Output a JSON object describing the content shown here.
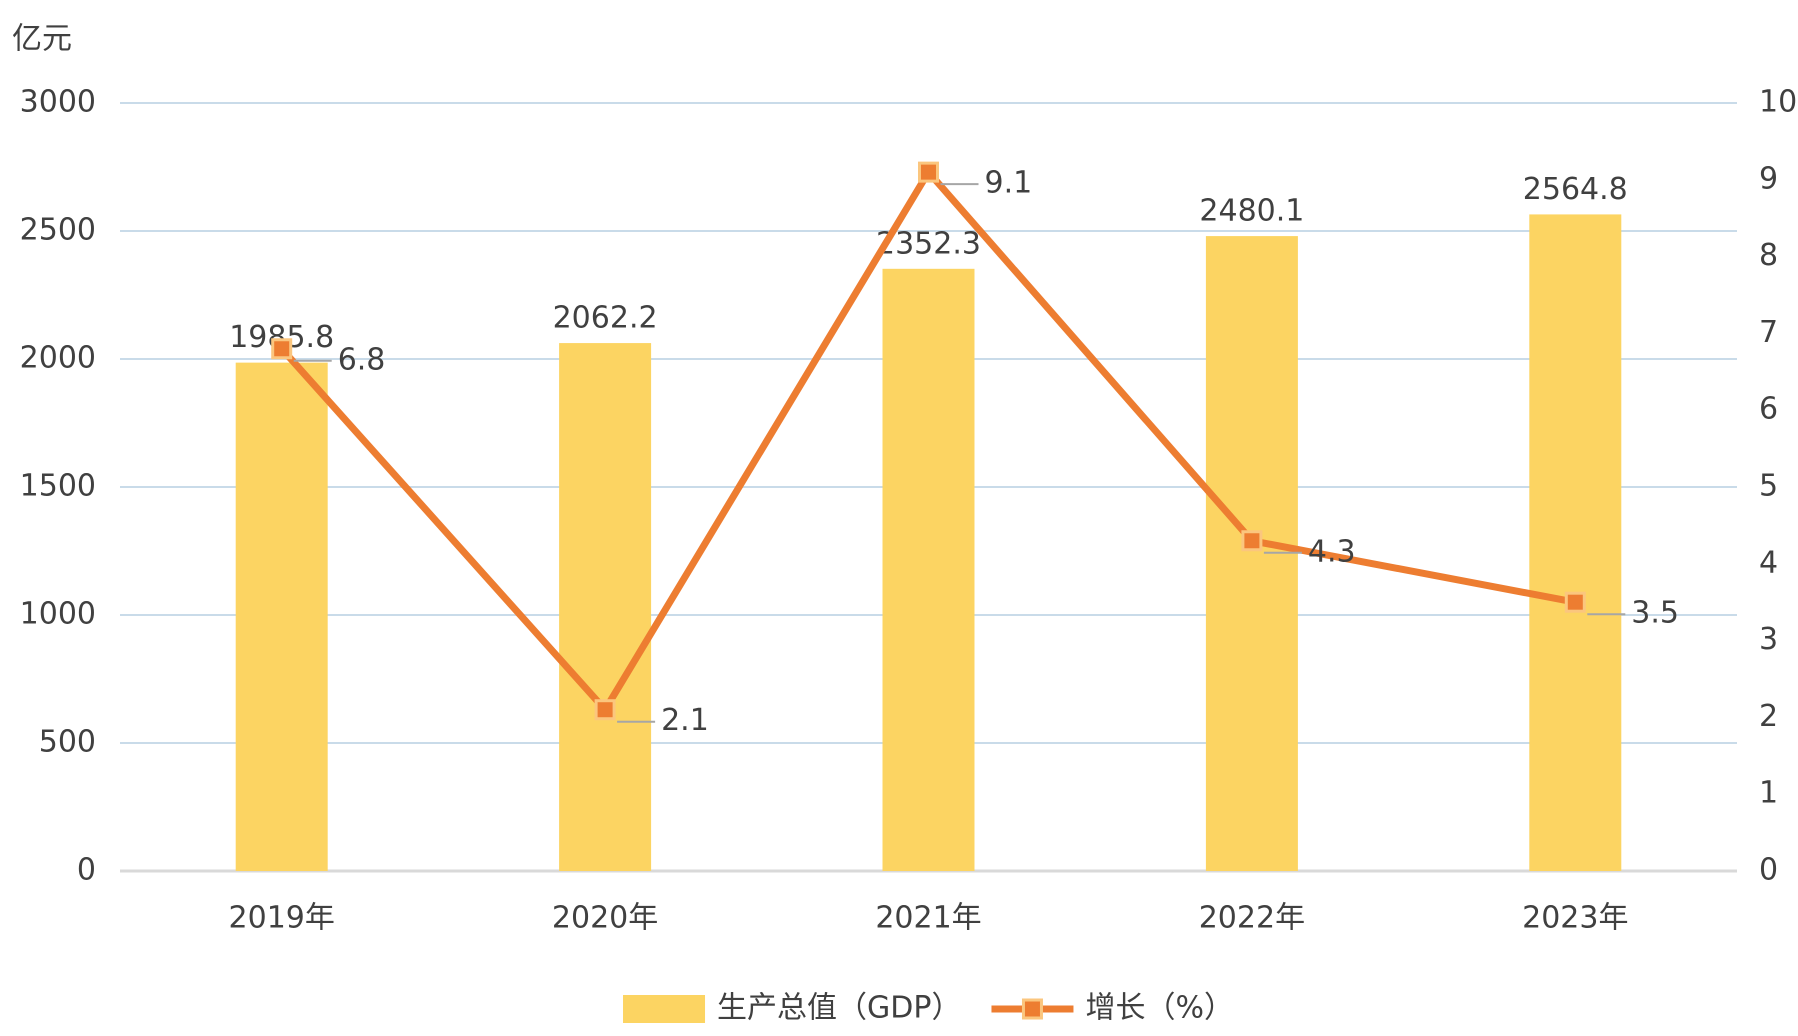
{
  "chart_data": {
    "type": "bar",
    "y_axis_label": "亿元",
    "categories": [
      "2019年",
      "2020年",
      "2021年",
      "2022年",
      "2023年"
    ],
    "series": [
      {
        "name": "生产总值（GDP）",
        "type": "bar",
        "color": "#fcd462",
        "values": [
          1985.8,
          2062.2,
          2352.3,
          2480.1,
          2564.8
        ]
      },
      {
        "name": "增长（%）",
        "type": "line",
        "axis": "y2",
        "color": "#ed7d31",
        "values": [
          6.8,
          2.1,
          9.1,
          4.3,
          3.5
        ]
      }
    ],
    "ylim": [
      0,
      3000
    ],
    "yticks": [
      0,
      500,
      1000,
      1500,
      2000,
      2500,
      3000
    ],
    "y2lim": [
      0,
      10
    ],
    "y2ticks": [
      0,
      1,
      2,
      3,
      4,
      5,
      6,
      7,
      8,
      9,
      10
    ],
    "grid": true,
    "legend": "bottom"
  }
}
